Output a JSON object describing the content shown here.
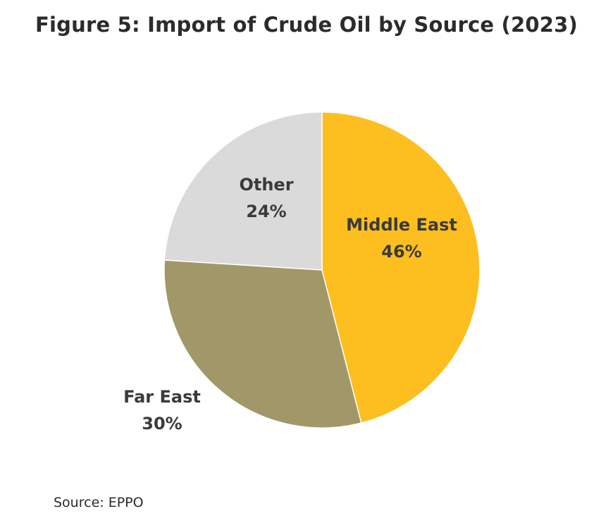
{
  "chart_data": {
    "type": "pie",
    "title": "Figure 5: Import of Crude Oil by Source (2023)",
    "labels": [
      "Middle East",
      "Far East",
      "Other"
    ],
    "values": [
      46,
      30,
      24
    ],
    "value_labels": [
      "46%",
      "30%",
      "24%"
    ],
    "colors": [
      "#FDBE1F",
      "#A19769",
      "#DADADA"
    ],
    "start_angle": "12 o'clock",
    "direction": "clockwise",
    "legend": "none"
  },
  "source": "Source: EPPO"
}
